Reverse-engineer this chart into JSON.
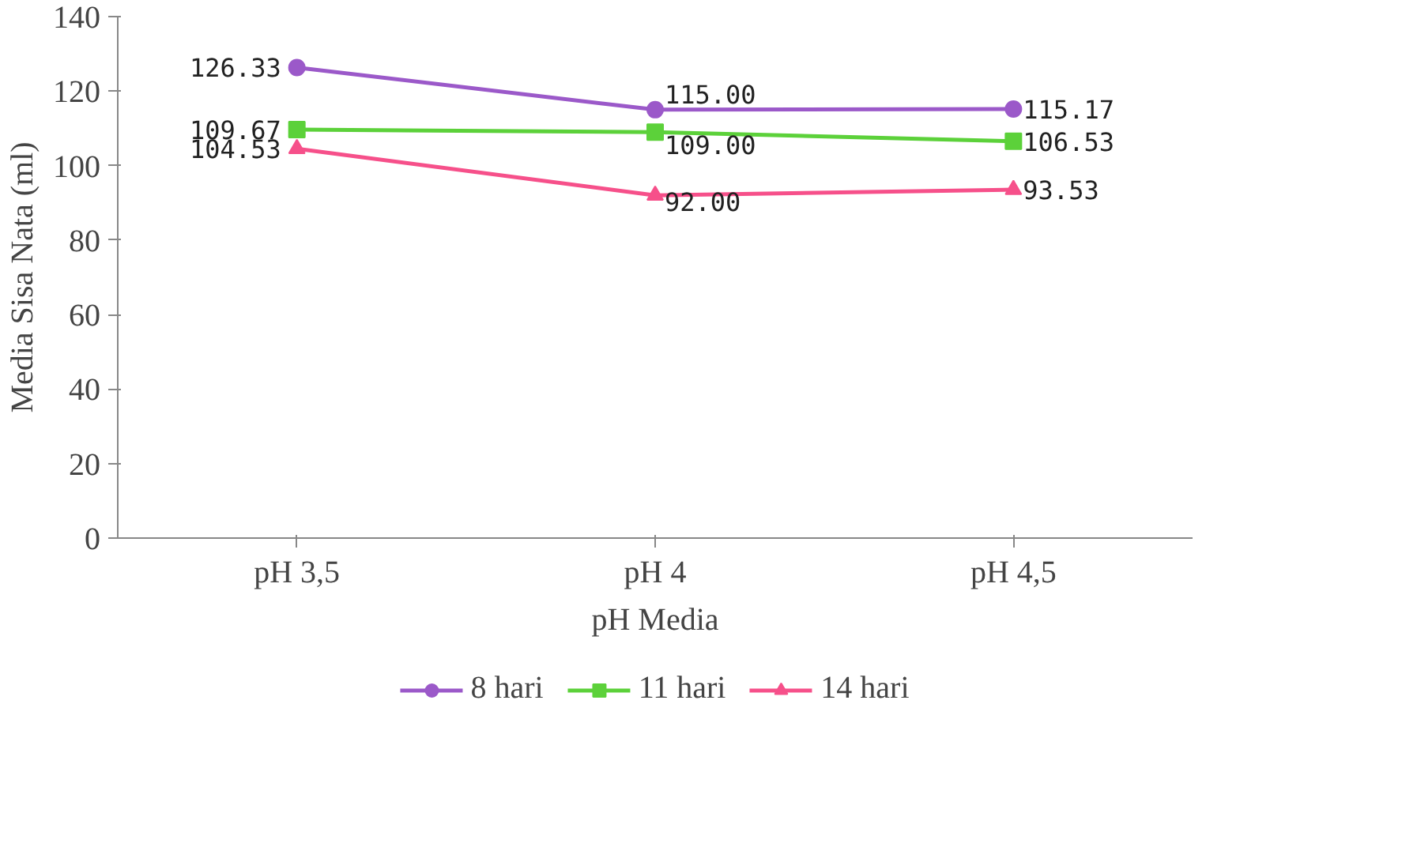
{
  "chart_data": {
    "type": "line",
    "xlabel": "pH Media",
    "ylabel": "Media Sisa Nata (ml)",
    "categories": [
      "pH 3,5",
      "pH 4",
      "pH 4,5"
    ],
    "ylim": [
      0,
      140
    ],
    "yticks": [
      0,
      20,
      40,
      60,
      80,
      100,
      120,
      140
    ],
    "grid": false,
    "legend": "bottom",
    "line_style": "solid",
    "series": [
      {
        "name": "8 hari",
        "color": "#9b59c9",
        "marker": "circle",
        "values": [
          126.33,
          115.0,
          115.17
        ],
        "value_labels": [
          "126.33",
          "115.00",
          "115.17"
        ]
      },
      {
        "name": "11 hari",
        "color": "#5cd13a",
        "marker": "square",
        "values": [
          109.67,
          109.0,
          106.53
        ],
        "value_labels": [
          "109.67",
          "109.00",
          "106.53"
        ]
      },
      {
        "name": "14 hari",
        "color": "#f6508a",
        "marker": "triangle",
        "values": [
          104.53,
          92.0,
          93.53
        ],
        "value_labels": [
          "104.53",
          "92.00",
          "93.53"
        ]
      }
    ]
  }
}
